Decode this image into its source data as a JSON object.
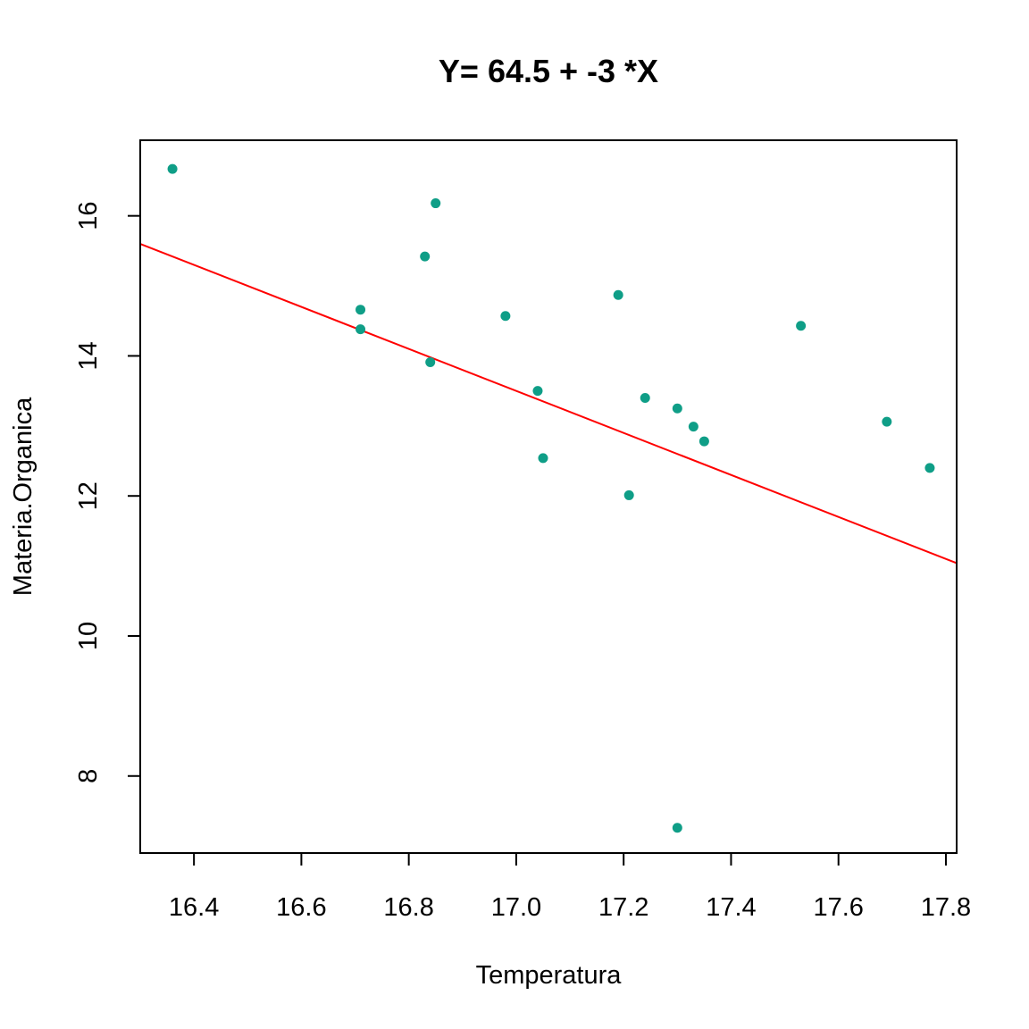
{
  "chart_data": {
    "type": "scatter",
    "title": "Y= 64.5 + -3 *X",
    "xlabel": "Temperatura",
    "ylabel": "Materia.Organica",
    "xlim": [
      16.3,
      17.82
    ],
    "ylim": [
      6.9,
      17.08
    ],
    "x_ticks": [
      16.4,
      16.6,
      16.8,
      17.0,
      17.2,
      17.4,
      17.6,
      17.8
    ],
    "x_tick_labels": [
      "16.4",
      "16.6",
      "16.8",
      "17.0",
      "17.2",
      "17.4",
      "17.6",
      "17.8"
    ],
    "y_ticks": [
      8,
      10,
      12,
      14,
      16
    ],
    "y_tick_labels": [
      "8",
      "10",
      "12",
      "14",
      "16"
    ],
    "grid": false,
    "points": [
      {
        "x": 16.36,
        "y": 16.67
      },
      {
        "x": 16.71,
        "y": 14.66
      },
      {
        "x": 16.71,
        "y": 14.38
      },
      {
        "x": 16.83,
        "y": 15.42
      },
      {
        "x": 16.84,
        "y": 13.91
      },
      {
        "x": 16.85,
        "y": 16.18
      },
      {
        "x": 16.98,
        "y": 14.57
      },
      {
        "x": 17.04,
        "y": 13.5
      },
      {
        "x": 17.05,
        "y": 12.54
      },
      {
        "x": 17.19,
        "y": 14.87
      },
      {
        "x": 17.21,
        "y": 12.01
      },
      {
        "x": 17.24,
        "y": 13.4
      },
      {
        "x": 17.3,
        "y": 13.25
      },
      {
        "x": 17.33,
        "y": 12.99
      },
      {
        "x": 17.35,
        "y": 12.78
      },
      {
        "x": 17.3,
        "y": 7.26
      },
      {
        "x": 17.53,
        "y": 14.43
      },
      {
        "x": 17.69,
        "y": 13.06
      },
      {
        "x": 17.77,
        "y": 12.4
      }
    ],
    "regression_line": {
      "intercept": 64.5,
      "slope": -3
    },
    "point_color": "#0F9E87",
    "line_color": "#FF0000"
  }
}
